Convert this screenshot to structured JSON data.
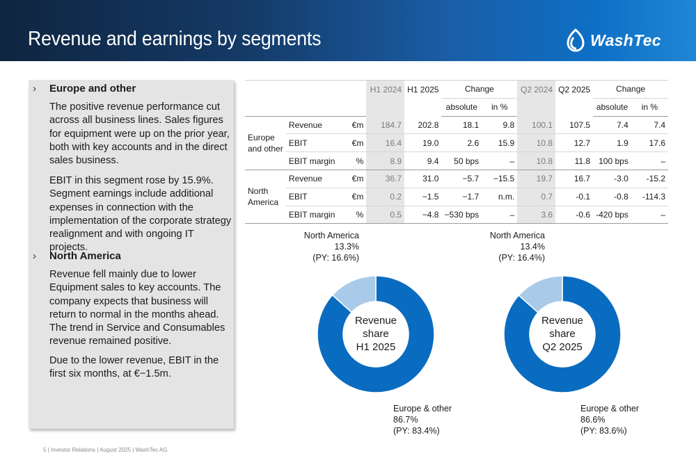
{
  "header": {
    "title": "Revenue and earnings by segments",
    "logo_text": "WashTec",
    "gradient": [
      "#0f2540",
      "#1f86d6"
    ]
  },
  "colors": {
    "europe": "#0a6cc0",
    "north_america": "#a9cbe9",
    "panel": "#e4e4e4",
    "grey_col": "#e6e6e6"
  },
  "left_panel": {
    "sections": [
      {
        "chevron": "›",
        "heading": "Europe and other",
        "paragraphs": [
          "The positive revenue performance cut across all business lines. Sales figures for equipment were up on the prior year, both with key accounts and in the direct sales business.",
          "EBIT in this segment rose by 15.9%. Segment earnings include additional expenses in connection with the implementation of the corporate strategy realignment and with ongoing IT projects."
        ]
      },
      {
        "chevron": "›",
        "heading": "North America",
        "paragraphs": [
          "Revenue fell mainly due to lower Equipment sales to key accounts. The company expects that business will return to normal in the months ahead. The trend in Service and Consumables revenue remained positive.",
          "Due to the lower revenue, EBIT in the first six months, at €−1.5m."
        ]
      }
    ]
  },
  "table": {
    "headers": {
      "h1_2024": "H1 2024",
      "h1_2025": "H1 2025",
      "change": "Change",
      "q2_2024": "Q2 2024",
      "q2_2025": "Q2 2025",
      "change2": "Change",
      "absolute": "absolute",
      "in_pct": "in %",
      "absolute2": "absolute",
      "in_pct2": "in %"
    },
    "groups": [
      {
        "name": "Europe and other",
        "rows": [
          {
            "label": "Revenue",
            "unit": "€m",
            "h1_2024": "184.7",
            "h1_2025": "202.8",
            "abs": "18.1",
            "pct": "9.8",
            "q2_2024": "100.1",
            "q2_2025": "107.5",
            "abs2": "7.4",
            "pct2": "7.4"
          },
          {
            "label": "EBIT",
            "unit": "€m",
            "h1_2024": "16.4",
            "h1_2025": "19.0",
            "abs": "2.6",
            "pct": "15.9",
            "q2_2024": "10.8",
            "q2_2025": "12.7",
            "abs2": "1.9",
            "pct2": "17.6"
          },
          {
            "label": "EBIT margin",
            "unit": "%",
            "h1_2024": "8.9",
            "h1_2025": "9.4",
            "abs": "50 bps",
            "pct": "–",
            "q2_2024": "10.8",
            "q2_2025": "11.8",
            "abs2": "100 bps",
            "pct2": "–"
          }
        ]
      },
      {
        "name": "North America",
        "rows": [
          {
            "label": "Revenue",
            "unit": "€m",
            "h1_2024": "36.7",
            "h1_2025": "31.0",
            "abs": "−5.7",
            "pct": "−15.5",
            "q2_2024": "19.7",
            "q2_2025": "16.7",
            "abs2": "-3.0",
            "pct2": "-15.2"
          },
          {
            "label": "EBIT",
            "unit": "€m",
            "h1_2024": "0.2",
            "h1_2025": "−1.5",
            "abs": "−1.7",
            "pct": "n.m.",
            "q2_2024": "0.7",
            "q2_2025": "-0.1",
            "abs2": "-0.8",
            "pct2": "-114.3"
          },
          {
            "label": "EBIT margin",
            "unit": "%",
            "h1_2024": "0.5",
            "h1_2025": "−4.8",
            "abs": "−530 bps",
            "pct": "–",
            "q2_2024": "3.6",
            "q2_2025": "-0.6",
            "abs2": "-420 bps",
            "pct2": "–"
          }
        ]
      }
    ]
  },
  "chart_data": [
    {
      "type": "pie",
      "title": "Revenue share H1 2025",
      "center_lines": [
        "Revenue",
        "share",
        "H1 2025"
      ],
      "categories": [
        "North America",
        "Europe & other"
      ],
      "values": [
        13.3,
        86.7
      ],
      "value_labels": [
        "13.3%",
        "86.7%"
      ],
      "py_labels": [
        "(PY: 16.6%)",
        "(PY: 83.4%)"
      ],
      "colors": [
        "#a9cbe9",
        "#0a6cc0"
      ]
    },
    {
      "type": "pie",
      "title": "Revenue share Q2 2025",
      "center_lines": [
        "Revenue",
        "share",
        "Q2 2025"
      ],
      "categories": [
        "North America",
        "Europe & other"
      ],
      "values": [
        13.4,
        86.6
      ],
      "value_labels": [
        "13.4%",
        "86.6%"
      ],
      "py_labels": [
        "(PY: 16.4%)",
        "(PY: 83.6%)"
      ],
      "colors": [
        "#a9cbe9",
        "#0a6cc0"
      ]
    }
  ],
  "footer": {
    "text": "5 |  Investor Relations | August 2025 | WashTec AG"
  }
}
